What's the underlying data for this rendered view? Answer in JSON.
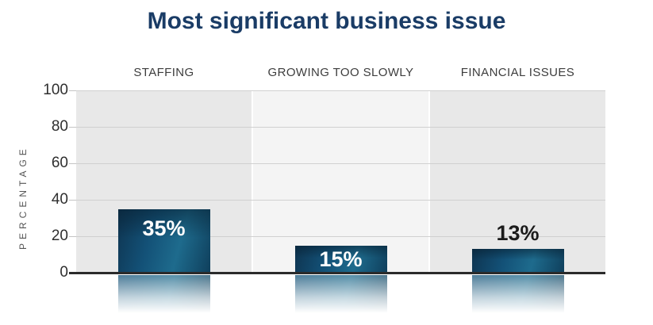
{
  "chart_data": {
    "type": "bar",
    "title": "Most significant business issue",
    "ylabel": "PERCENTAGE",
    "xlabel": "",
    "categories": [
      "STAFFING",
      "GROWING TOO SLOWLY",
      "FINANCIAL ISSUES"
    ],
    "values": [
      35,
      15,
      13
    ],
    "value_labels": [
      "35%",
      "15%",
      "13%"
    ],
    "value_label_placement": [
      "inside-top",
      "inside-center",
      "above"
    ],
    "ylim": [
      0,
      100
    ],
    "yticks": [
      0,
      20,
      40,
      60,
      80,
      100
    ],
    "grid": true,
    "legend_position": "none",
    "panel_colors": [
      "#e8e8e8",
      "#f4f4f4",
      "#e8e8e8"
    ],
    "colors": {
      "title_text": "#1a3c66",
      "bar_dark": "#0e3450",
      "bar_mid": "#135177",
      "bar_light": "#1e6b8d",
      "bar_edge": "#0f3f5c",
      "bar_top_shade": "rgba(7,32,50,0.55)",
      "value_label_inside": "#ffffff",
      "value_label_above": "#1b1b1b",
      "axis_line": "#2b2b2b",
      "gridline": "#d0d0d0",
      "tick_mark": "#c4c4c4",
      "tick_text": "#2f2f2f",
      "category_text": "#3d3d3d",
      "ylabel_text": "#555555"
    }
  }
}
